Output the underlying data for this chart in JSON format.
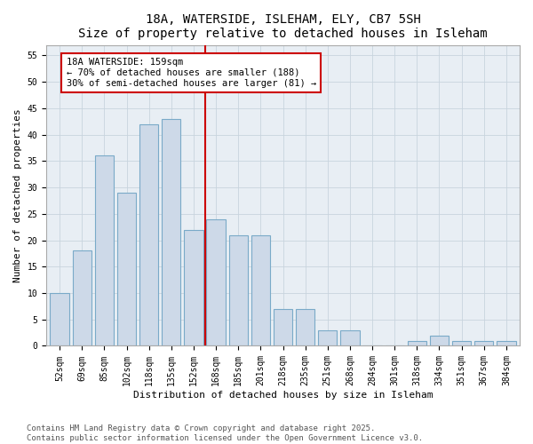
{
  "title1": "18A, WATERSIDE, ISLEHAM, ELY, CB7 5SH",
  "title2": "Size of property relative to detached houses in Isleham",
  "xlabel": "Distribution of detached houses by size in Isleham",
  "ylabel": "Number of detached properties",
  "bin_labels": [
    "52sqm",
    "69sqm",
    "85sqm",
    "102sqm",
    "118sqm",
    "135sqm",
    "152sqm",
    "168sqm",
    "185sqm",
    "201sqm",
    "218sqm",
    "235sqm",
    "251sqm",
    "268sqm",
    "284sqm",
    "301sqm",
    "318sqm",
    "334sqm",
    "351sqm",
    "367sqm",
    "384sqm"
  ],
  "values": [
    10,
    18,
    36,
    29,
    42,
    43,
    22,
    24,
    21,
    21,
    7,
    7,
    3,
    3,
    0,
    0,
    1,
    2,
    1,
    1,
    1
  ],
  "bar_color": "#cdd9e8",
  "bar_edge_color": "#7aaac8",
  "grid_color": "#c8d4de",
  "background_color": "#e8eef4",
  "vline_index": 6.5,
  "vline_color": "#cc0000",
  "annotation_title": "18A WATERSIDE: 159sqm",
  "annotation_line1": "← 70% of detached houses are smaller (188)",
  "annotation_line2": "30% of semi-detached houses are larger (81) →",
  "annotation_box_color": "#ffffff",
  "annotation_box_edge": "#cc0000",
  "ylim": [
    0,
    57
  ],
  "yticks": [
    0,
    5,
    10,
    15,
    20,
    25,
    30,
    35,
    40,
    45,
    50,
    55
  ],
  "footer1": "Contains HM Land Registry data © Crown copyright and database right 2025.",
  "footer2": "Contains public sector information licensed under the Open Government Licence v3.0.",
  "title_fontsize": 10,
  "axis_label_fontsize": 8,
  "tick_fontsize": 7,
  "annotation_fontsize": 7.5,
  "footer_fontsize": 6.5
}
